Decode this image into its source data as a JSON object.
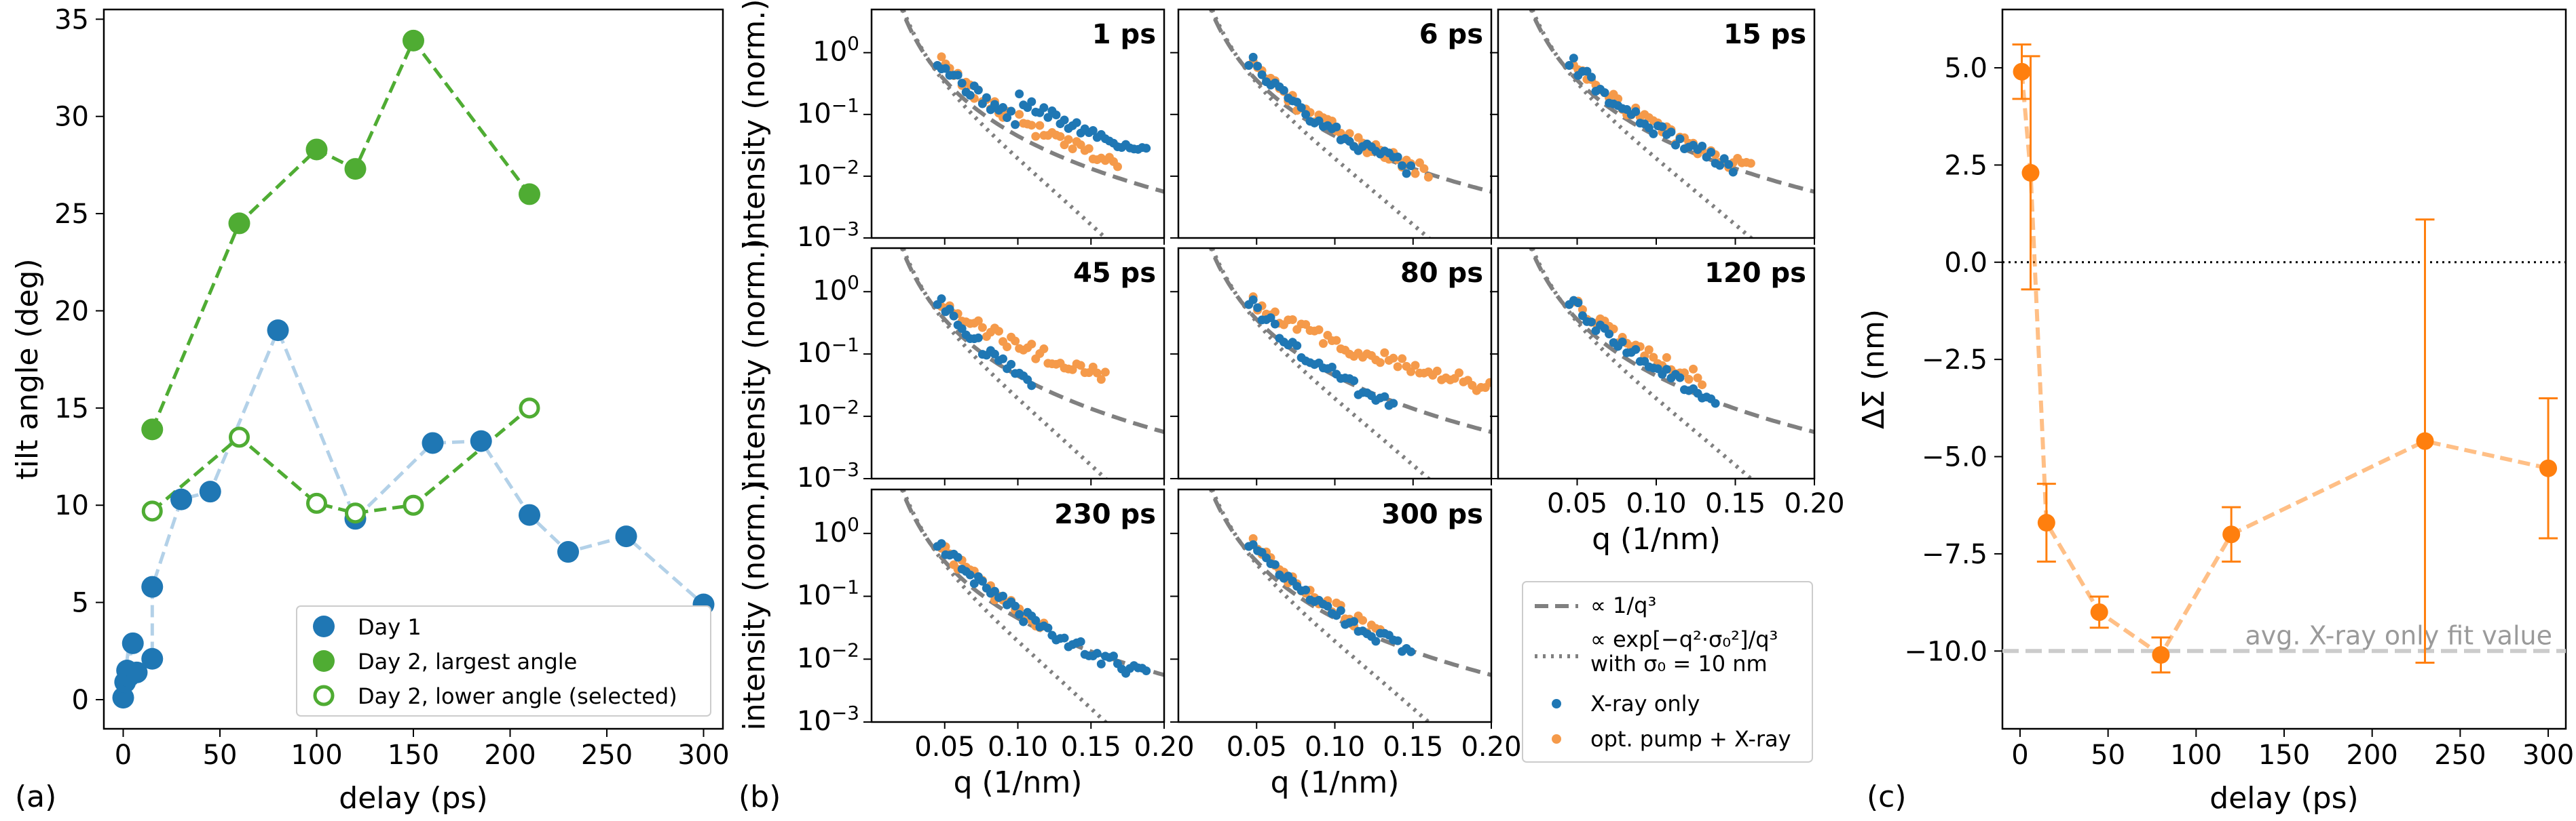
{
  "panel_labels": {
    "a": "(a)",
    "b": "(b)",
    "c": "(c)"
  },
  "chart_data": [
    {
      "type": "scatter",
      "panel": "(a)",
      "xlabel": "delay (ps)",
      "ylabel": "tilt angle (deg)",
      "xlim": [
        -10,
        310
      ],
      "ylim": [
        -1.5,
        35.5
      ],
      "xticks": [
        0,
        50,
        100,
        150,
        200,
        250,
        300
      ],
      "yticks": [
        0,
        5,
        10,
        15,
        20,
        25,
        30,
        35
      ],
      "legend_position": "lower-right",
      "series": [
        {
          "name": "Day 1",
          "style": "filled",
          "color": "#1f77b4",
          "line_color": "#b3d1e8",
          "x": [
            0,
            1,
            2,
            3,
            5,
            7,
            15,
            15,
            30,
            45,
            80,
            120,
            160,
            185,
            210,
            230,
            260,
            300
          ],
          "y": [
            0.1,
            0.9,
            1.5,
            1.2,
            2.9,
            1.4,
            2.1,
            5.8,
            10.3,
            10.7,
            19.0,
            9.3,
            13.2,
            13.3,
            9.5,
            7.6,
            8.4,
            4.9
          ]
        },
        {
          "name": "Day 2, largest angle",
          "style": "filled",
          "color": "#4fac33",
          "line_color": "#4fac33",
          "x": [
            15,
            60,
            100,
            120,
            150,
            210
          ],
          "y": [
            13.9,
            24.5,
            28.3,
            27.3,
            33.9,
            26.0
          ]
        },
        {
          "name": "Day 2, lower angle (selected)",
          "style": "open",
          "color": "#4fac33",
          "line_color": "#4fac33",
          "x": [
            15,
            60,
            100,
            120,
            150,
            210
          ],
          "y": [
            9.7,
            13.5,
            10.1,
            9.6,
            10.0,
            15.0
          ]
        }
      ]
    },
    {
      "type": "scatter",
      "panel": "(b)",
      "xlabel": "q (1/nm)",
      "ylabel": "intensity (norm.)",
      "yscale": "log",
      "xlim": [
        0.0,
        0.2
      ],
      "ylim": [
        0.001,
        5
      ],
      "xticks": [
        0.05,
        0.1,
        0.15,
        0.2
      ],
      "xtick_labels": [
        "0.05",
        "0.10",
        "0.15",
        "0.20"
      ],
      "ytick_labels": [
        "10^0",
        "10^-1",
        "10^-2",
        "10^-3"
      ],
      "legend": [
        "∝ 1/q³",
        "∝ exp[−q²·σ₀²]/q³",
        "with σ₀ = 10 nm",
        "X-ray only",
        "opt. pump + X-ray"
      ],
      "reference_curves": [
        "∝ 1/q³ (gray dashed)",
        "∝ exp[−q²σ₀²]/q³, σ₀ = 10 nm (gray dotted)"
      ],
      "subplots": [
        {
          "title": "1 ps",
          "xray_end": 0.19,
          "pump_end": 0.17,
          "xray_slope": 2.6,
          "pump_slope": 2.6,
          "bump": 0.1,
          "bump_amp": 2.2
        },
        {
          "title": "6 ps",
          "xray_end": 0.15,
          "pump_end": 0.16,
          "xray_slope": 3.1,
          "pump_slope": 3.0,
          "bump": 0.1,
          "bump_amp": 1.0
        },
        {
          "title": "15 ps",
          "xray_end": 0.15,
          "pump_end": 0.16,
          "xray_slope": 3.0,
          "pump_slope": 2.9,
          "bump": 0.1,
          "bump_amp": 1.0
        },
        {
          "title": "45 ps",
          "xray_end": 0.11,
          "pump_end": 0.16,
          "xray_slope": 3.3,
          "pump_slope": 1.9,
          "bump": 0.1,
          "bump_amp": 1.0
        },
        {
          "title": "80 ps",
          "xray_end": 0.14,
          "pump_end": 0.2,
          "xray_slope": 3.3,
          "pump_slope": 1.8,
          "bump": 0.1,
          "bump_amp": 1.0
        },
        {
          "title": "120 ps",
          "xray_end": 0.14,
          "pump_end": 0.13,
          "xray_slope": 3.0,
          "pump_slope": 2.5,
          "bump": 0.1,
          "bump_amp": 1.0
        },
        {
          "title": "230 ps",
          "xray_end": 0.19,
          "pump_end": 0.12,
          "xray_slope": 3.1,
          "pump_slope": 2.9,
          "bump": 0.1,
          "bump_amp": 1.0
        },
        {
          "title": "300 ps",
          "xray_end": 0.15,
          "pump_end": 0.13,
          "xray_slope": 3.1,
          "pump_slope": 2.9,
          "bump": 0.1,
          "bump_amp": 1.0
        }
      ]
    },
    {
      "type": "line",
      "panel": "(c)",
      "xlabel": "delay (ps)",
      "ylabel": "ΔΣ (nm)",
      "xlim": [
        -10,
        310
      ],
      "ylim": [
        -12,
        6.5
      ],
      "xticks": [
        0,
        50,
        100,
        150,
        200,
        250,
        300
      ],
      "yticks": [
        5.0,
        2.5,
        0.0,
        -2.5,
        -5.0,
        -7.5,
        -10.0
      ],
      "ytick_labels": [
        "5.0",
        "2.5",
        "0.0",
        "−2.5",
        "−5.0",
        "−7.5",
        "−10.0"
      ],
      "series": [
        {
          "name": "ΔΣ",
          "color": "#ff7f0e",
          "x": [
            1,
            6,
            15,
            45,
            80,
            120,
            230,
            300
          ],
          "y": [
            4.9,
            2.3,
            -6.7,
            -9.0,
            -10.1,
            -7.0,
            -4.6,
            -5.3
          ],
          "err": [
            0.7,
            3.0,
            1.0,
            0.4,
            0.45,
            0.7,
            5.7,
            1.8
          ]
        }
      ],
      "reference_lines": [
        {
          "y": 0.0,
          "style": "dotted",
          "color": "#000000"
        },
        {
          "y": -10.0,
          "style": "dashed",
          "color": "#cccccc",
          "label": "avg. X-ray only fit value"
        }
      ]
    }
  ]
}
